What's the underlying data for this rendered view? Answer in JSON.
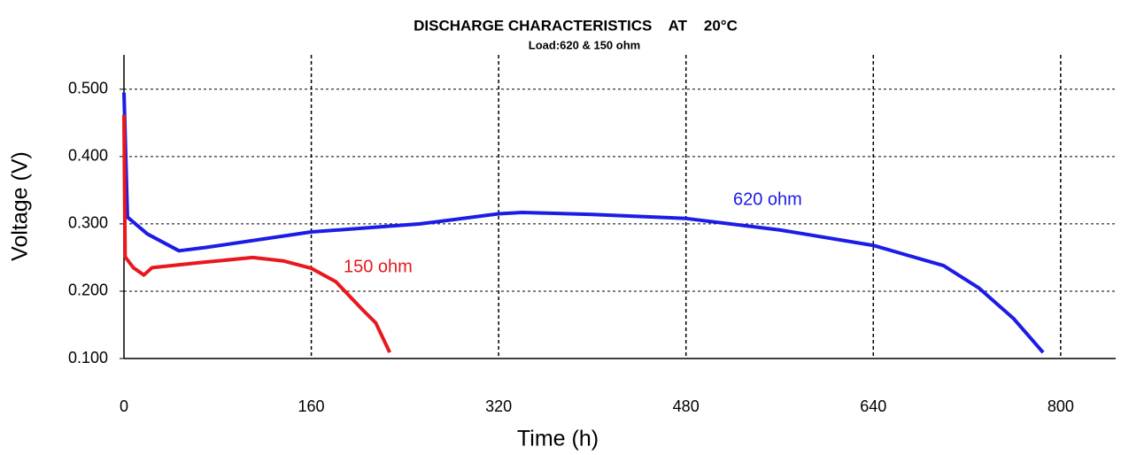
{
  "chart_data": {
    "type": "line",
    "title": "DISCHARGE CHARACTERISTICS    AT    20°C",
    "subtitle": "Load:620 & 150 ohm",
    "x_label": "Time (h)",
    "y_label": "Voltage (V)",
    "xlim": [
      0,
      847
    ],
    "ylim": [
      0.1,
      0.551
    ],
    "xticks": [
      0,
      160,
      320,
      480,
      640,
      800
    ],
    "yticks": [
      {
        "value": 0.1,
        "label": "0.100"
      },
      {
        "value": 0.2,
        "label": "0.200"
      },
      {
        "value": 0.3,
        "label": "0.300"
      },
      {
        "value": 0.4,
        "label": "0.400"
      },
      {
        "value": 0.5,
        "label": "0.500"
      }
    ],
    "grid": true,
    "series": [
      {
        "name": "620 ohm",
        "color": "#1c1ce6",
        "x": [
          0,
          3,
          20,
          47,
          70,
          160,
          253,
          320,
          340,
          400,
          480,
          560,
          640,
          700,
          730,
          760,
          785
        ],
        "values": [
          0.495,
          0.31,
          0.285,
          0.26,
          0.265,
          0.288,
          0.3,
          0.315,
          0.317,
          0.314,
          0.308,
          0.291,
          0.268,
          0.238,
          0.205,
          0.159,
          0.109
        ]
      },
      {
        "name": "150 ohm",
        "color": "#e8181c",
        "x": [
          0,
          1,
          8,
          17,
          24,
          68,
          110,
          136,
          160,
          181,
          204,
          215,
          227
        ],
        "values": [
          0.462,
          0.251,
          0.235,
          0.224,
          0.235,
          0.243,
          0.25,
          0.245,
          0.234,
          0.214,
          0.172,
          0.153,
          0.109
        ]
      }
    ]
  }
}
